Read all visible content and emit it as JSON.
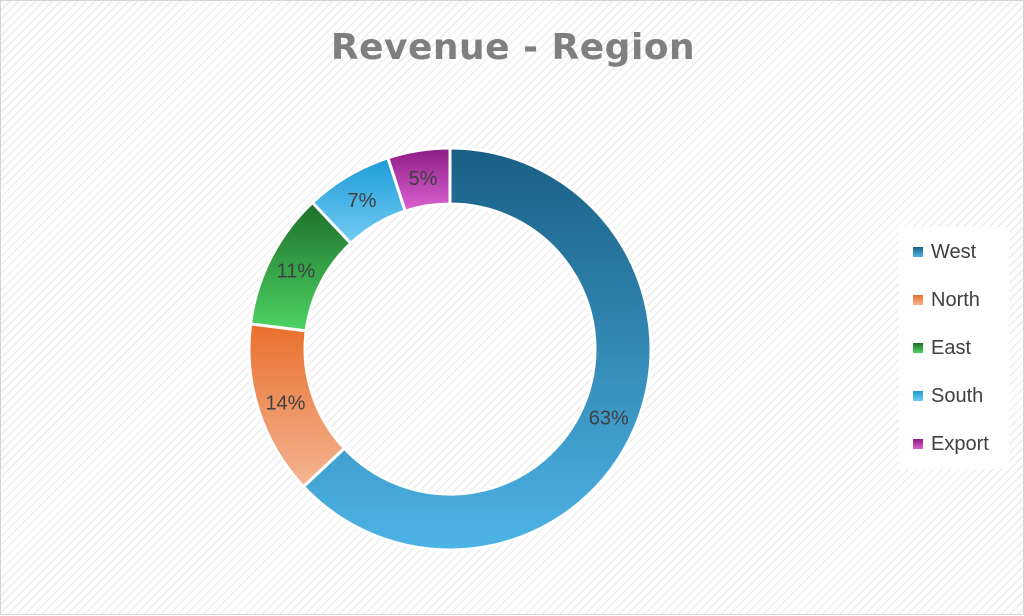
{
  "chart_data": {
    "type": "pie",
    "title": "Revenue - Region",
    "categories": [
      "West",
      "North",
      "East",
      "South",
      "Export"
    ],
    "values": [
      63,
      14,
      11,
      7,
      5
    ],
    "data_labels": [
      "63%",
      "14%",
      "11%",
      "7%",
      "5%"
    ],
    "colors": [
      [
        "#1a5f85",
        "#4db4e6"
      ],
      [
        "#e96f2d",
        "#f4b593"
      ],
      [
        "#1e6e2a",
        "#4cd464"
      ],
      [
        "#1e9bd6",
        "#72ccf4"
      ],
      [
        "#8c1c86",
        "#dc62d2"
      ]
    ],
    "legend_position": "right",
    "donut": true
  }
}
